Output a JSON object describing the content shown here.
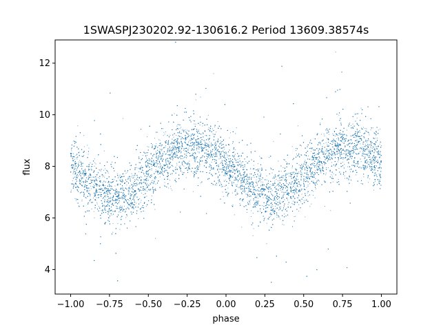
{
  "chart_data": {
    "type": "scatter",
    "title": "1SWASPJ230202.92-130616.2 Period 13609.38574s",
    "xlabel": "phase",
    "ylabel": "flux",
    "xlim": [
      -1.1,
      1.1
    ],
    "ylim": [
      3.05,
      12.9
    ],
    "xticks": [
      -1.0,
      -0.75,
      -0.5,
      -0.25,
      0.0,
      0.25,
      0.5,
      0.75,
      1.0
    ],
    "xtick_labels": [
      "−1.00",
      "−0.75",
      "−0.50",
      "−0.25",
      "0.00",
      "0.25",
      "0.50",
      "0.75",
      "1.00"
    ],
    "yticks": [
      4,
      6,
      8,
      10,
      12
    ],
    "ytick_labels": [
      "4",
      "6",
      "8",
      "10",
      "12"
    ],
    "grid": false,
    "legend": "none",
    "marker_color": "#1f77b4",
    "series": [
      {
        "x": [
          -1.0,
          -0.9,
          -0.8,
          -0.75,
          -0.7,
          -0.6,
          -0.5,
          -0.4,
          -0.3,
          -0.25,
          -0.2,
          -0.1,
          0.0,
          0.1,
          0.2,
          0.25,
          0.3,
          0.4,
          0.5,
          0.6,
          0.7,
          0.75,
          0.8,
          0.9,
          1.0
        ],
        "y": [
          8.1,
          7.4,
          7.0,
          6.85,
          6.8,
          7.1,
          7.7,
          8.3,
          8.65,
          8.75,
          8.75,
          8.55,
          8.1,
          7.5,
          7.05,
          6.85,
          6.8,
          7.1,
          7.7,
          8.25,
          8.6,
          8.7,
          8.75,
          8.55,
          8.1
        ]
      }
    ]
  }
}
